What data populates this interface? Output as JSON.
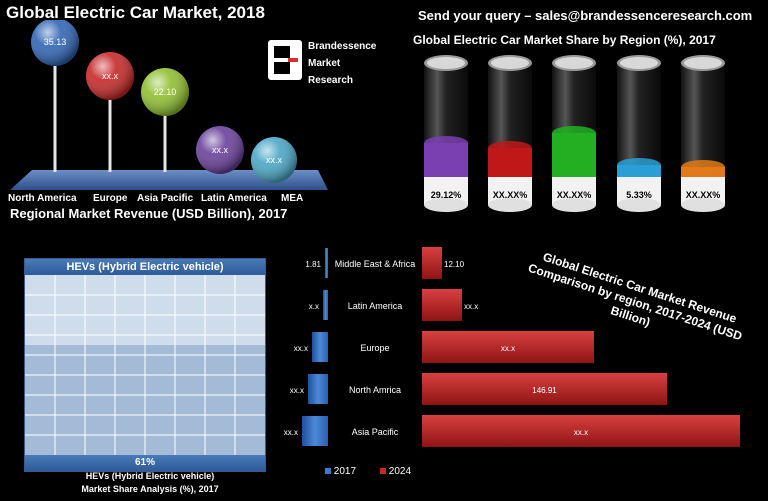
{
  "header": {
    "title": "Global  Electric Car  Market, 2018",
    "query": "Send your query – sales@brandessenceresearch.com"
  },
  "brand": {
    "line1": "Brandessence",
    "line2": "Market",
    "line3": "Research"
  },
  "regional_revenue": {
    "title": "Regional Market Revenue (USD Billion), 2017",
    "regions": [
      "North America",
      "Europe",
      "Asia Pacific",
      "Latin America",
      "MEA"
    ],
    "values": [
      "35.13",
      "xx.x",
      "22.10",
      "xx.x",
      "xx.x"
    ],
    "colors": [
      "#2f64b4",
      "#c62828",
      "#8fbf2f",
      "#6a3f9a",
      "#4aa6c6"
    ]
  },
  "share": {
    "title": "Global Electric Car Market Share by Region  (%), 2017",
    "labels": [
      "29.12%",
      "XX.XX%",
      "XX.XX%",
      "5.33%",
      "XX.XX%"
    ],
    "colors": [
      "#7a3fb0",
      "#c01818",
      "#22b022",
      "#2a9fd6",
      "#e07a18"
    ]
  },
  "hev": {
    "header": "HEVs (Hybrid Electric vehicle)",
    "value_label": "61%",
    "value": 61,
    "caption_line1": "HEVs (Hybrid Electric vehicle)",
    "caption_line2": "Market Share Analysis (%), 2017"
  },
  "comparison": {
    "title": "Global Electric  Car Market Revenue Comparison by region, 2017-2024 (USD Billion)",
    "legend_2017": "2017",
    "legend_2024": "2024"
  },
  "chart_data": [
    {
      "type": "bar",
      "title": "Regional Market Revenue (USD Billion), 2017",
      "categories": [
        "North America",
        "Europe",
        "Asia Pacific",
        "Latin America",
        "MEA"
      ],
      "values": [
        35.13,
        null,
        22.1,
        null,
        null
      ],
      "value_labels": [
        "35.13",
        "xx.x",
        "22.10",
        "xx.x",
        "xx.x"
      ]
    },
    {
      "type": "bar",
      "title": "Global Electric Car Market Share by Region  (%), 2017",
      "categories": [
        "",
        "",
        "",
        "",
        ""
      ],
      "values": [
        29.12,
        null,
        null,
        5.33,
        null
      ],
      "value_labels": [
        "29.12%",
        "XX.XX%",
        "XX.XX%",
        "5.33%",
        "XX.XX%"
      ]
    },
    {
      "type": "bar",
      "title": "Global Electric  Car Market Revenue Comparison by region, 2017-2024 (USD Billion)",
      "categories": [
        "Middle East & Africa",
        "Latin America",
        "Europe",
        "North Amrica",
        "Asia Pacific"
      ],
      "series": [
        {
          "name": "2017",
          "values": [
            1.81,
            null,
            null,
            null,
            null
          ],
          "labels": [
            "1.81",
            "x.x",
            "xx.x",
            "xx.x",
            "xx.x"
          ]
        },
        {
          "name": "2024",
          "values": [
            12.1,
            null,
            null,
            146.91,
            null
          ],
          "labels": [
            "12.10",
            "xx.x",
            "xx.x",
            "146.91",
            "xx.x"
          ]
        }
      ]
    }
  ]
}
